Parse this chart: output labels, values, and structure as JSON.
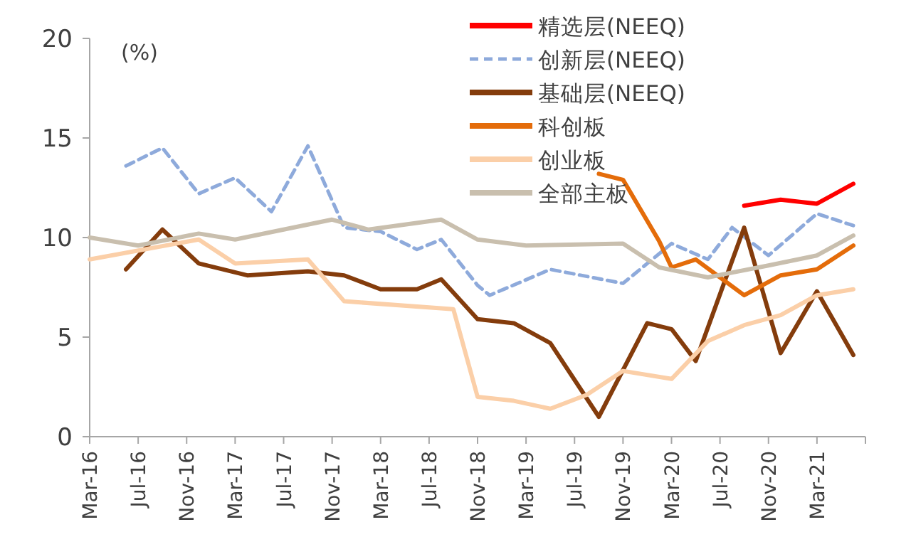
{
  "chart_data": {
    "type": "line",
    "ylabel": "(%)",
    "legend": "top right",
    "grid": false,
    "marker": "none",
    "xlim": [
      "2016-03",
      "2021-07"
    ],
    "ylim": [
      0,
      20
    ],
    "yticks": [
      0,
      5,
      10,
      15,
      20
    ],
    "xticks": [
      {
        "value": "2016-03",
        "label": "Mar-16"
      },
      {
        "value": "2016-07",
        "label": "Jul-16"
      },
      {
        "value": "2016-11",
        "label": "Nov-16"
      },
      {
        "value": "2017-03",
        "label": "Mar-17"
      },
      {
        "value": "2017-07",
        "label": "Jul-17"
      },
      {
        "value": "2017-11",
        "label": "Nov-17"
      },
      {
        "value": "2018-03",
        "label": "Mar-18"
      },
      {
        "value": "2018-07",
        "label": "Jul-18"
      },
      {
        "value": "2018-11",
        "label": "Nov-18"
      },
      {
        "value": "2019-03",
        "label": "Mar-19"
      },
      {
        "value": "2019-07",
        "label": "Jul-19"
      },
      {
        "value": "2019-11",
        "label": "Nov-19"
      },
      {
        "value": "2020-03",
        "label": "Mar-20"
      },
      {
        "value": "2020-07",
        "label": "Jul-20"
      },
      {
        "value": "2020-11",
        "label": "Nov-20"
      },
      {
        "value": "2021-03",
        "label": "Mar-21"
      }
    ],
    "series": [
      {
        "name": "精选层(NEEQ)",
        "color": "#ff0000",
        "line_style": "solid",
        "x": [
          "2020-09",
          "2020-12",
          "2021-03",
          "2021-06"
        ],
        "values": [
          11.6,
          11.9,
          11.7,
          12.7
        ]
      },
      {
        "name": "创新层(NEEQ)",
        "color": "#8eaadb",
        "line_style": "dashed",
        "x": [
          "2016-06",
          "2016-09",
          "2016-12",
          "2017-03",
          "2017-06",
          "2017-09",
          "2017-12",
          "2018-03",
          "2018-06",
          "2018-08",
          "2018-11",
          "2018-12",
          "2019-05",
          "2019-11",
          "2020-03",
          "2020-06",
          "2020-08",
          "2020-11",
          "2021-03",
          "2021-06"
        ],
        "values": [
          13.6,
          14.5,
          12.2,
          13.0,
          11.3,
          14.6,
          10.5,
          10.3,
          9.4,
          9.9,
          7.6,
          7.1,
          8.4,
          7.7,
          9.7,
          8.9,
          10.5,
          9.1,
          11.2,
          10.6
        ]
      },
      {
        "name": "基础层(NEEQ)",
        "color": "#843c0c",
        "line_style": "solid",
        "x": [
          "2016-06",
          "2016-09",
          "2016-12",
          "2017-04",
          "2017-09",
          "2017-12",
          "2018-03",
          "2018-06",
          "2018-08",
          "2018-11",
          "2019-02",
          "2019-05",
          "2019-09",
          "2020-01",
          "2020-03",
          "2020-05",
          "2020-09",
          "2020-12",
          "2021-03",
          "2021-06"
        ],
        "values": [
          8.4,
          10.4,
          8.7,
          8.1,
          8.3,
          8.1,
          7.4,
          7.4,
          7.9,
          5.9,
          5.7,
          4.7,
          1.0,
          5.7,
          5.4,
          3.8,
          10.5,
          4.2,
          7.3,
          4.1
        ]
      },
      {
        "name": "科创板",
        "color": "#e46c0a",
        "line_style": "solid",
        "x": [
          "2019-09",
          "2019-11",
          "2020-02",
          "2020-03",
          "2020-05",
          "2020-09",
          "2020-12",
          "2021-03",
          "2021-06"
        ],
        "values": [
          13.2,
          12.9,
          9.8,
          8.5,
          8.9,
          7.1,
          8.1,
          8.4,
          9.6
        ]
      },
      {
        "name": "创业板",
        "color": "#fbcfa8",
        "line_style": "solid",
        "x": [
          "2016-03",
          "2016-12",
          "2017-03",
          "2017-09",
          "2017-12",
          "2018-09",
          "2018-11",
          "2019-02",
          "2019-05",
          "2019-08",
          "2019-11",
          "2020-03",
          "2020-06",
          "2020-09",
          "2020-12",
          "2021-03",
          "2021-06"
        ],
        "values": [
          8.9,
          9.9,
          8.7,
          8.9,
          6.8,
          6.4,
          2.0,
          1.8,
          1.4,
          2.1,
          3.3,
          2.9,
          4.8,
          5.6,
          6.1,
          7.1,
          7.4
        ]
      },
      {
        "name": "全部主板",
        "color": "#c9bfae",
        "line_style": "solid",
        "x": [
          "2016-03",
          "2016-07",
          "2016-12",
          "2017-03",
          "2017-11",
          "2018-02",
          "2018-08",
          "2018-11",
          "2019-03",
          "2019-11",
          "2020-02",
          "2020-06",
          "2020-11",
          "2021-03",
          "2021-06"
        ],
        "values": [
          10.0,
          9.6,
          10.2,
          9.9,
          10.9,
          10.4,
          10.9,
          9.9,
          9.6,
          9.7,
          8.5,
          8.0,
          8.6,
          9.1,
          10.1
        ]
      }
    ]
  }
}
